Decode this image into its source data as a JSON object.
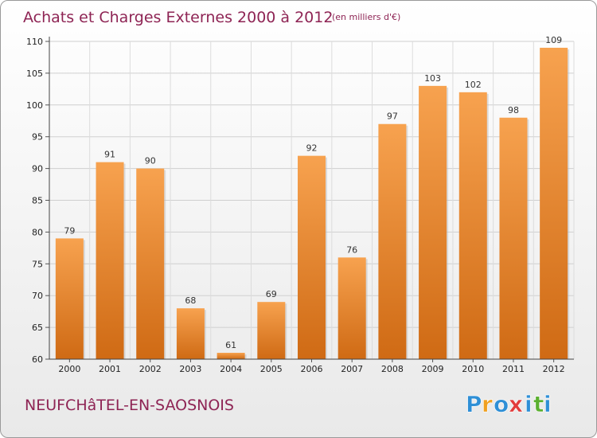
{
  "chart_data": {
    "type": "bar",
    "title": "Achats et Charges Externes 2000 à 2012",
    "subtitle": "(en milliers d'€)",
    "categories": [
      "2000",
      "2001",
      "2002",
      "2003",
      "2004",
      "2005",
      "2006",
      "2007",
      "2008",
      "2009",
      "2010",
      "2011",
      "2012"
    ],
    "values": [
      79,
      91,
      90,
      68,
      61,
      69,
      92,
      76,
      97,
      103,
      102,
      98,
      109
    ],
    "ylim": [
      60,
      110
    ],
    "yticks": [
      60,
      65,
      70,
      75,
      80,
      85,
      90,
      95,
      100,
      105,
      110
    ],
    "grid": true,
    "bar_color_top": "#f7a24f",
    "bar_color_bottom": "#cf6a14"
  },
  "commune": "NEUFCHâTEL-EN-SAOSNOIS",
  "logo": {
    "text": "Proxiti",
    "letters": [
      "P",
      "r",
      "o",
      "x",
      "i",
      "t",
      "i"
    ],
    "colors": [
      "#2e8fd6",
      "#f0a020",
      "#2e8fd6",
      "#e23b3b",
      "#2e8fd6",
      "#5bb030",
      "#2e8fd6"
    ]
  }
}
